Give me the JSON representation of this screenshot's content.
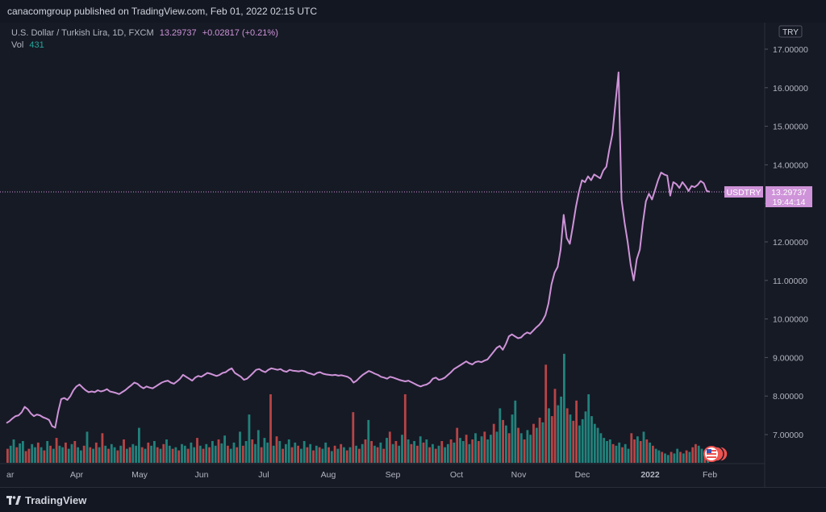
{
  "header": {
    "published": "canacomgroup published on TradingView.com, Feb 01, 2022 02:15 UTC"
  },
  "legend": {
    "pair": "U.S. Dollar / Turkish Lira, 1D, FXCM",
    "price": "13.29737",
    "change": "+0.02817 (+0.21%)",
    "vol_label": "Vol",
    "vol_value": "431"
  },
  "currency": "TRY",
  "price_tag": {
    "symbol": "USDTRY",
    "price": "13.29737",
    "countdown": "19:44:14"
  },
  "footer": {
    "brand": "TradingView"
  },
  "colors": {
    "line": "#ce93d8",
    "up": "#26a69a",
    "down": "#ef5350",
    "axis_text": "#b2b5be",
    "tag": "#ce93d8"
  },
  "chart_data": {
    "type": "line",
    "title": "U.S. Dollar / Turkish Lira, 1D, FXCM",
    "ylim": [
      6.0,
      17.5
    ],
    "y_ticks": [
      "17.00000",
      "16.00000",
      "15.00000",
      "14.00000",
      "13.00000",
      "12.00000",
      "11.00000",
      "10.00000",
      "9.00000",
      "8.00000",
      "7.00000"
    ],
    "x_ticks": [
      "ar",
      "Apr",
      "May",
      "Jun",
      "Jul",
      "Aug",
      "Sep",
      "Oct",
      "Nov",
      "Dec",
      "2022",
      "Feb"
    ],
    "current_price": 13.29737,
    "series": [
      {
        "values": [
          7.3,
          7.35,
          7.42,
          7.48,
          7.5,
          7.58,
          7.72,
          7.66,
          7.55,
          7.48,
          7.52,
          7.5,
          7.45,
          7.42,
          7.38,
          7.22,
          7.18,
          7.6,
          7.92,
          7.95,
          7.9,
          8.0,
          8.15,
          8.25,
          8.3,
          8.22,
          8.15,
          8.1,
          8.12,
          8.1,
          8.15,
          8.12,
          8.14,
          8.18,
          8.12,
          8.1,
          8.08,
          8.05,
          8.1,
          8.15,
          8.22,
          8.28,
          8.35,
          8.32,
          8.25,
          8.2,
          8.25,
          8.22,
          8.2,
          8.25,
          8.3,
          8.35,
          8.38,
          8.4,
          8.35,
          8.32,
          8.38,
          8.45,
          8.55,
          8.5,
          8.45,
          8.4,
          8.48,
          8.52,
          8.5,
          8.55,
          8.6,
          8.58,
          8.55,
          8.52,
          8.55,
          8.6,
          8.62,
          8.68,
          8.72,
          8.6,
          8.55,
          8.5,
          8.42,
          8.45,
          8.52,
          8.6,
          8.68,
          8.7,
          8.65,
          8.62,
          8.68,
          8.72,
          8.7,
          8.68,
          8.7,
          8.65,
          8.63,
          8.68,
          8.66,
          8.65,
          8.64,
          8.66,
          8.64,
          8.6,
          8.58,
          8.55,
          8.6,
          8.62,
          8.58,
          8.56,
          8.55,
          8.54,
          8.55,
          8.53,
          8.54,
          8.52,
          8.5,
          8.45,
          8.35,
          8.4,
          8.48,
          8.55,
          8.6,
          8.65,
          8.62,
          8.58,
          8.55,
          8.5,
          8.48,
          8.45,
          8.5,
          8.48,
          8.45,
          8.42,
          8.4,
          8.38,
          8.4,
          8.36,
          8.32,
          8.28,
          8.25,
          8.28,
          8.3,
          8.35,
          8.45,
          8.48,
          8.42,
          8.44,
          8.48,
          8.55,
          8.62,
          8.7,
          8.75,
          8.8,
          8.85,
          8.9,
          8.85,
          8.82,
          8.88,
          8.9,
          8.88,
          8.92,
          8.95,
          9.05,
          9.15,
          9.25,
          9.3,
          9.2,
          9.35,
          9.55,
          9.6,
          9.55,
          9.5,
          9.52,
          9.6,
          9.65,
          9.62,
          9.7,
          9.78,
          9.85,
          9.95,
          10.1,
          10.4,
          10.9,
          11.2,
          11.35,
          11.8,
          12.7,
          12.1,
          11.95,
          12.4,
          12.9,
          13.3,
          13.6,
          13.55,
          13.7,
          13.6,
          13.75,
          13.7,
          13.65,
          13.85,
          13.95,
          14.4,
          14.8,
          15.6,
          16.4,
          13.1,
          12.5,
          12.0,
          11.4,
          11.0,
          11.55,
          11.8,
          12.5,
          13.05,
          13.25,
          13.1,
          13.35,
          13.6,
          13.8,
          13.75,
          13.72,
          13.2,
          13.55,
          13.5,
          13.4,
          13.55,
          13.45,
          13.32,
          13.45,
          13.42,
          13.48,
          13.58,
          13.52,
          13.32,
          13.3
        ]
      }
    ],
    "volume": [
      {
        "v": 0.18,
        "up": false
      },
      {
        "v": 0.22,
        "up": true
      },
      {
        "v": 0.3,
        "up": true
      },
      {
        "v": 0.2,
        "up": false
      },
      {
        "v": 0.25,
        "up": true
      },
      {
        "v": 0.28,
        "up": true
      },
      {
        "v": 0.15,
        "up": false
      },
      {
        "v": 0.18,
        "up": false
      },
      {
        "v": 0.24,
        "up": true
      },
      {
        "v": 0.2,
        "up": true
      },
      {
        "v": 0.26,
        "up": false
      },
      {
        "v": 0.2,
        "up": true
      },
      {
        "v": 0.16,
        "up": false
      },
      {
        "v": 0.28,
        "up": true
      },
      {
        "v": 0.22,
        "up": false
      },
      {
        "v": 0.18,
        "up": true
      },
      {
        "v": 0.32,
        "up": false
      },
      {
        "v": 0.22,
        "up": true
      },
      {
        "v": 0.2,
        "up": true
      },
      {
        "v": 0.26,
        "up": false
      },
      {
        "v": 0.18,
        "up": true
      },
      {
        "v": 0.24,
        "up": true
      },
      {
        "v": 0.28,
        "up": false
      },
      {
        "v": 0.2,
        "up": true
      },
      {
        "v": 0.16,
        "up": true
      },
      {
        "v": 0.22,
        "up": false
      },
      {
        "v": 0.4,
        "up": true
      },
      {
        "v": 0.2,
        "up": false
      },
      {
        "v": 0.18,
        "up": true
      },
      {
        "v": 0.26,
        "up": false
      },
      {
        "v": 0.2,
        "up": true
      },
      {
        "v": 0.38,
        "up": false
      },
      {
        "v": 0.22,
        "up": true
      },
      {
        "v": 0.18,
        "up": false
      },
      {
        "v": 0.24,
        "up": true
      },
      {
        "v": 0.2,
        "up": true
      },
      {
        "v": 0.16,
        "up": false
      },
      {
        "v": 0.22,
        "up": true
      },
      {
        "v": 0.3,
        "up": false
      },
      {
        "v": 0.18,
        "up": true
      },
      {
        "v": 0.2,
        "up": false
      },
      {
        "v": 0.24,
        "up": true
      },
      {
        "v": 0.22,
        "up": true
      },
      {
        "v": 0.45,
        "up": true
      },
      {
        "v": 0.2,
        "up": false
      },
      {
        "v": 0.18,
        "up": true
      },
      {
        "v": 0.26,
        "up": false
      },
      {
        "v": 0.22,
        "up": true
      },
      {
        "v": 0.28,
        "up": true
      },
      {
        "v": 0.2,
        "up": false
      },
      {
        "v": 0.18,
        "up": true
      },
      {
        "v": 0.24,
        "up": false
      },
      {
        "v": 0.3,
        "up": true
      },
      {
        "v": 0.22,
        "up": true
      },
      {
        "v": 0.18,
        "up": false
      },
      {
        "v": 0.2,
        "up": true
      },
      {
        "v": 0.16,
        "up": false
      },
      {
        "v": 0.24,
        "up": true
      },
      {
        "v": 0.22,
        "up": true
      },
      {
        "v": 0.18,
        "up": false
      },
      {
        "v": 0.26,
        "up": true
      },
      {
        "v": 0.2,
        "up": true
      },
      {
        "v": 0.32,
        "up": false
      },
      {
        "v": 0.22,
        "up": true
      },
      {
        "v": 0.18,
        "up": false
      },
      {
        "v": 0.24,
        "up": true
      },
      {
        "v": 0.2,
        "up": false
      },
      {
        "v": 0.28,
        "up": true
      },
      {
        "v": 0.22,
        "up": true
      },
      {
        "v": 0.3,
        "up": false
      },
      {
        "v": 0.25,
        "up": true
      },
      {
        "v": 0.35,
        "up": true
      },
      {
        "v": 0.22,
        "up": false
      },
      {
        "v": 0.18,
        "up": true
      },
      {
        "v": 0.26,
        "up": true
      },
      {
        "v": 0.2,
        "up": false
      },
      {
        "v": 0.4,
        "up": true
      },
      {
        "v": 0.22,
        "up": false
      },
      {
        "v": 0.28,
        "up": true
      },
      {
        "v": 0.62,
        "up": true
      },
      {
        "v": 0.3,
        "up": false
      },
      {
        "v": 0.24,
        "up": true
      },
      {
        "v": 0.42,
        "up": true
      },
      {
        "v": 0.2,
        "up": false
      },
      {
        "v": 0.32,
        "up": true
      },
      {
        "v": 0.26,
        "up": true
      },
      {
        "v": 0.88,
        "up": false
      },
      {
        "v": 0.22,
        "up": true
      },
      {
        "v": 0.34,
        "up": false
      },
      {
        "v": 0.28,
        "up": true
      },
      {
        "v": 0.18,
        "up": false
      },
      {
        "v": 0.24,
        "up": true
      },
      {
        "v": 0.3,
        "up": true
      },
      {
        "v": 0.2,
        "up": false
      },
      {
        "v": 0.26,
        "up": true
      },
      {
        "v": 0.22,
        "up": false
      },
      {
        "v": 0.18,
        "up": true
      },
      {
        "v": 0.28,
        "up": true
      },
      {
        "v": 0.2,
        "up": false
      },
      {
        "v": 0.24,
        "up": true
      },
      {
        "v": 0.16,
        "up": false
      },
      {
        "v": 0.22,
        "up": true
      },
      {
        "v": 0.2,
        "up": false
      },
      {
        "v": 0.18,
        "up": true
      },
      {
        "v": 0.26,
        "up": true
      },
      {
        "v": 0.2,
        "up": false
      },
      {
        "v": 0.15,
        "up": true
      },
      {
        "v": 0.22,
        "up": false
      },
      {
        "v": 0.18,
        "up": true
      },
      {
        "v": 0.24,
        "up": false
      },
      {
        "v": 0.2,
        "up": true
      },
      {
        "v": 0.16,
        "up": false
      },
      {
        "v": 0.2,
        "up": true
      },
      {
        "v": 0.65,
        "up": false
      },
      {
        "v": 0.22,
        "up": true
      },
      {
        "v": 0.18,
        "up": false
      },
      {
        "v": 0.24,
        "up": true
      },
      {
        "v": 0.3,
        "up": false
      },
      {
        "v": 0.55,
        "up": true
      },
      {
        "v": 0.28,
        "up": false
      },
      {
        "v": 0.22,
        "up": true
      },
      {
        "v": 0.2,
        "up": false
      },
      {
        "v": 0.26,
        "up": true
      },
      {
        "v": 0.18,
        "up": false
      },
      {
        "v": 0.32,
        "up": true
      },
      {
        "v": 0.4,
        "up": false
      },
      {
        "v": 0.24,
        "up": true
      },
      {
        "v": 0.28,
        "up": false
      },
      {
        "v": 0.22,
        "up": true
      },
      {
        "v": 0.36,
        "up": true
      },
      {
        "v": 0.88,
        "up": false
      },
      {
        "v": 0.3,
        "up": true
      },
      {
        "v": 0.24,
        "up": false
      },
      {
        "v": 0.28,
        "up": true
      },
      {
        "v": 0.22,
        "up": false
      },
      {
        "v": 0.34,
        "up": true
      },
      {
        "v": 0.26,
        "up": false
      },
      {
        "v": 0.3,
        "up": true
      },
      {
        "v": 0.2,
        "up": false
      },
      {
        "v": 0.24,
        "up": true
      },
      {
        "v": 0.18,
        "up": false
      },
      {
        "v": 0.22,
        "up": true
      },
      {
        "v": 0.28,
        "up": false
      },
      {
        "v": 0.2,
        "up": true
      },
      {
        "v": 0.24,
        "up": true
      },
      {
        "v": 0.3,
        "up": false
      },
      {
        "v": 0.26,
        "up": true
      },
      {
        "v": 0.45,
        "up": false
      },
      {
        "v": 0.32,
        "up": true
      },
      {
        "v": 0.28,
        "up": true
      },
      {
        "v": 0.36,
        "up": false
      },
      {
        "v": 0.24,
        "up": true
      },
      {
        "v": 0.3,
        "up": false
      },
      {
        "v": 0.38,
        "up": true
      },
      {
        "v": 0.28,
        "up": false
      },
      {
        "v": 0.34,
        "up": true
      },
      {
        "v": 0.4,
        "up": false
      },
      {
        "v": 0.3,
        "up": true
      },
      {
        "v": 0.36,
        "up": true
      },
      {
        "v": 0.5,
        "up": false
      },
      {
        "v": 0.4,
        "up": true
      },
      {
        "v": 0.7,
        "up": true
      },
      {
        "v": 0.55,
        "up": false
      },
      {
        "v": 0.48,
        "up": true
      },
      {
        "v": 0.38,
        "up": false
      },
      {
        "v": 0.62,
        "up": true
      },
      {
        "v": 0.8,
        "up": true
      },
      {
        "v": 0.45,
        "up": false
      },
      {
        "v": 0.38,
        "up": true
      },
      {
        "v": 0.3,
        "up": false
      },
      {
        "v": 0.42,
        "up": true
      },
      {
        "v": 0.36,
        "up": true
      },
      {
        "v": 0.5,
        "up": false
      },
      {
        "v": 0.45,
        "up": true
      },
      {
        "v": 0.58,
        "up": false
      },
      {
        "v": 0.52,
        "up": true
      },
      {
        "v": 1.26,
        "up": false
      },
      {
        "v": 0.7,
        "up": true
      },
      {
        "v": 0.6,
        "up": false
      },
      {
        "v": 0.95,
        "up": false
      },
      {
        "v": 0.74,
        "up": true
      },
      {
        "v": 0.85,
        "up": true
      },
      {
        "v": 1.4,
        "up": true
      },
      {
        "v": 0.7,
        "up": false
      },
      {
        "v": 0.62,
        "up": true
      },
      {
        "v": 0.54,
        "up": false
      },
      {
        "v": 0.8,
        "up": false
      },
      {
        "v": 0.48,
        "up": true
      },
      {
        "v": 0.56,
        "up": true
      },
      {
        "v": 0.66,
        "up": true
      },
      {
        "v": 0.88,
        "up": true
      },
      {
        "v": 0.6,
        "up": true
      },
      {
        "v": 0.5,
        "up": true
      },
      {
        "v": 0.45,
        "up": true
      },
      {
        "v": 0.38,
        "up": true
      },
      {
        "v": 0.32,
        "up": true
      },
      {
        "v": 0.28,
        "up": true
      },
      {
        "v": 0.3,
        "up": true
      },
      {
        "v": 0.24,
        "up": false
      },
      {
        "v": 0.22,
        "up": true
      },
      {
        "v": 0.26,
        "up": true
      },
      {
        "v": 0.2,
        "up": false
      },
      {
        "v": 0.24,
        "up": true
      },
      {
        "v": 0.18,
        "up": true
      },
      {
        "v": 0.38,
        "up": false
      },
      {
        "v": 0.3,
        "up": false
      },
      {
        "v": 0.34,
        "up": true
      },
      {
        "v": 0.28,
        "up": false
      },
      {
        "v": 0.4,
        "up": true
      },
      {
        "v": 0.3,
        "up": false
      },
      {
        "v": 0.26,
        "up": true
      },
      {
        "v": 0.22,
        "up": false
      },
      {
        "v": 0.18,
        "up": true
      },
      {
        "v": 0.16,
        "up": true
      },
      {
        "v": 0.14,
        "up": false
      },
      {
        "v": 0.12,
        "up": true
      },
      {
        "v": 0.1,
        "up": true
      },
      {
        "v": 0.14,
        "up": false
      },
      {
        "v": 0.12,
        "up": true
      },
      {
        "v": 0.18,
        "up": true
      },
      {
        "v": 0.14,
        "up": false
      },
      {
        "v": 0.12,
        "up": true
      },
      {
        "v": 0.16,
        "up": false
      },
      {
        "v": 0.14,
        "up": true
      },
      {
        "v": 0.2,
        "up": false
      },
      {
        "v": 0.24,
        "up": false
      },
      {
        "v": 0.22,
        "up": true
      },
      {
        "v": 0.18,
        "up": true
      },
      {
        "v": 0.16,
        "up": false
      },
      {
        "v": 0.2,
        "up": true
      }
    ]
  }
}
